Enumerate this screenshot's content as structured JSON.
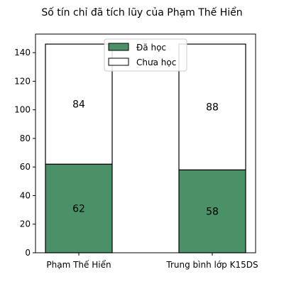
{
  "chart_data": {
    "type": "bar",
    "stacked": true,
    "title": "Số tín chỉ đã tích lũy của Phạm Thế Hiển",
    "xlabel": "",
    "ylabel": "",
    "categories": [
      "Phạm Thế Hiển",
      "Trung bình lớp K15DS"
    ],
    "series": [
      {
        "name": "Đã học",
        "values": [
          62,
          58
        ],
        "color": "#4a9168"
      },
      {
        "name": "Chưa học",
        "values": [
          84,
          88
        ],
        "color": "#ffffff"
      }
    ],
    "ylim": [
      0,
      153
    ],
    "yticks": [
      0,
      20,
      40,
      60,
      80,
      100,
      120,
      140
    ],
    "grid": false,
    "legend": {
      "placement": "top-center"
    }
  }
}
